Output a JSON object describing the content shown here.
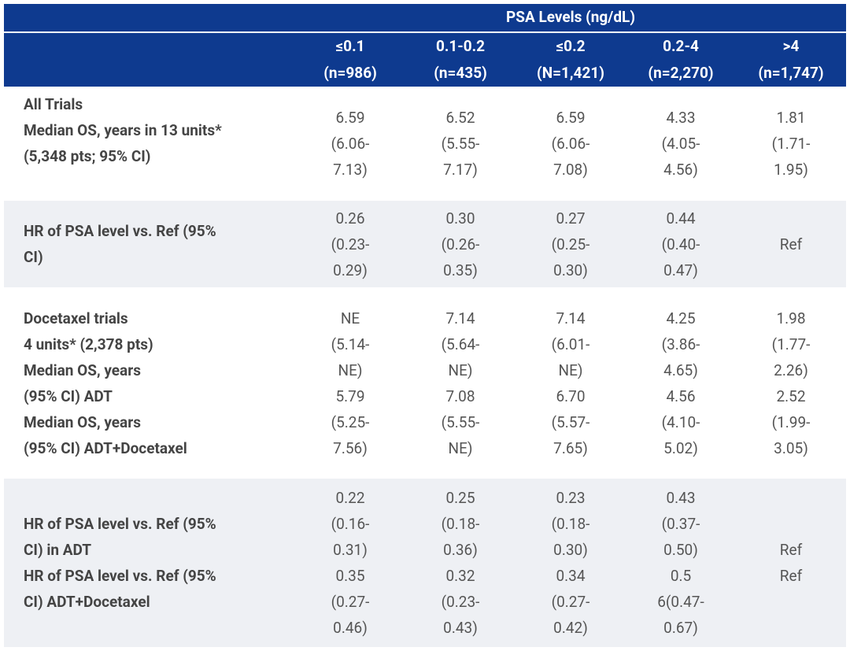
{
  "table": {
    "group_header": "PSA Levels (ng/dL)",
    "columns": [
      {
        "range": "≤0.1",
        "n": "(n=986)"
      },
      {
        "range": "0.1-0.2",
        "n": "(n=435)"
      },
      {
        "range": "≤0.2",
        "n": "(N=1,421)"
      },
      {
        "range": "0.2-4",
        "n": "(n=2,270)"
      },
      {
        "range": ">4",
        "n": "(n=1,747)"
      }
    ],
    "rows": [
      {
        "label": [
          "All Trials",
          "Median OS, years in 13 units*",
          "(5,348 pts; 95% CI)"
        ],
        "cells": [
          [
            "6.59",
            "(6.06-",
            "7.13)"
          ],
          [
            "6.52",
            "(5.55-",
            "7.17)"
          ],
          [
            "6.59",
            "(6.06-",
            "7.08)"
          ],
          [
            "4.33",
            "(4.05-",
            "4.56)"
          ],
          [
            "1.81",
            "(1.71-",
            "1.95)"
          ]
        ]
      },
      {
        "label": [
          "HR of PSA level vs. Ref (95%",
          "CI)"
        ],
        "cells": [
          [
            "0.26",
            "(0.23-",
            "0.29)"
          ],
          [
            "0.30",
            "(0.26-",
            "0.35)"
          ],
          [
            "0.27",
            "(0.25-",
            "0.30)"
          ],
          [
            "0.44",
            "(0.40-",
            "0.47)"
          ],
          [
            "Ref"
          ]
        ]
      },
      {
        "label": [
          "Docetaxel trials",
          "4 units* (2,378 pts)",
          "Median OS, years",
          "(95% CI) ADT",
          "Median OS, years",
          "(95% CI) ADT+Docetaxel"
        ],
        "cells": [
          [
            "NE",
            "(5.14-",
            "NE)",
            "5.79",
            "(5.25-",
            "7.56)"
          ],
          [
            "7.14",
            "(5.64-",
            "NE)",
            "7.08",
            "(5.55-",
            "NE)"
          ],
          [
            "7.14",
            "(6.01-",
            "NE)",
            "6.70",
            "(5.57-",
            "7.65)"
          ],
          [
            "4.25",
            "(3.86-",
            "4.65)",
            "4.56",
            "(4.10-",
            "5.02)"
          ],
          [
            "1.98",
            "(1.77-",
            "2.26)",
            "2.52",
            "(1.99-",
            "3.05)"
          ]
        ]
      },
      {
        "label": [
          "HR of PSA level vs. Ref (95%",
          "CI) in ADT",
          "HR of PSA level vs. Ref (95%",
          "CI) ADT+Docetaxel"
        ],
        "cells": [
          [
            "0.22",
            "(0.16-",
            "0.31)",
            "0.35",
            "(0.27-",
            "0.46)"
          ],
          [
            "0.25",
            "(0.18-",
            "0.36)",
            "0.32",
            "(0.23-",
            "0.43)"
          ],
          [
            "0.23",
            "(0.18-",
            "0.30)",
            "0.34",
            "(0.27-",
            "0.42)"
          ],
          [
            "0.43",
            "(0.37-",
            "0.50)",
            "0.5",
            "6(0.47-",
            "0.67)"
          ],
          [
            "Ref",
            "Ref"
          ]
        ]
      }
    ]
  }
}
